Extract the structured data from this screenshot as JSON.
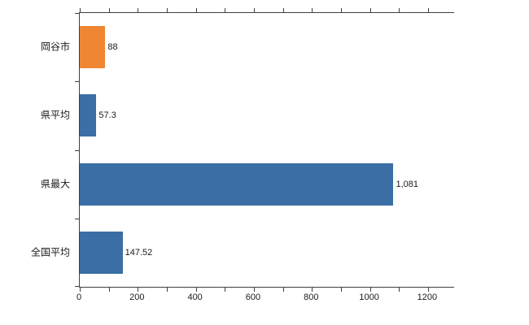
{
  "chart_data": {
    "type": "bar",
    "orientation": "horizontal",
    "title": "",
    "categories": [
      "岡谷市",
      "県平均",
      "県最大",
      "全国平均"
    ],
    "values": [
      88,
      57.3,
      1081,
      147.52
    ],
    "value_labels": [
      "88",
      "57.3",
      "1,081",
      "147.52"
    ],
    "bar_colors": [
      "#ee8633",
      "#3a6ea5",
      "#3a6ea5",
      "#3a6ea5"
    ],
    "xlim": [
      0,
      1290
    ],
    "xticks_major": [
      0,
      200,
      400,
      600,
      800,
      1000,
      1200
    ],
    "xtick_minor_step": 100,
    "xtick_minor_max": 1200,
    "grid": false,
    "legend": false,
    "axis_color": "#404040"
  }
}
